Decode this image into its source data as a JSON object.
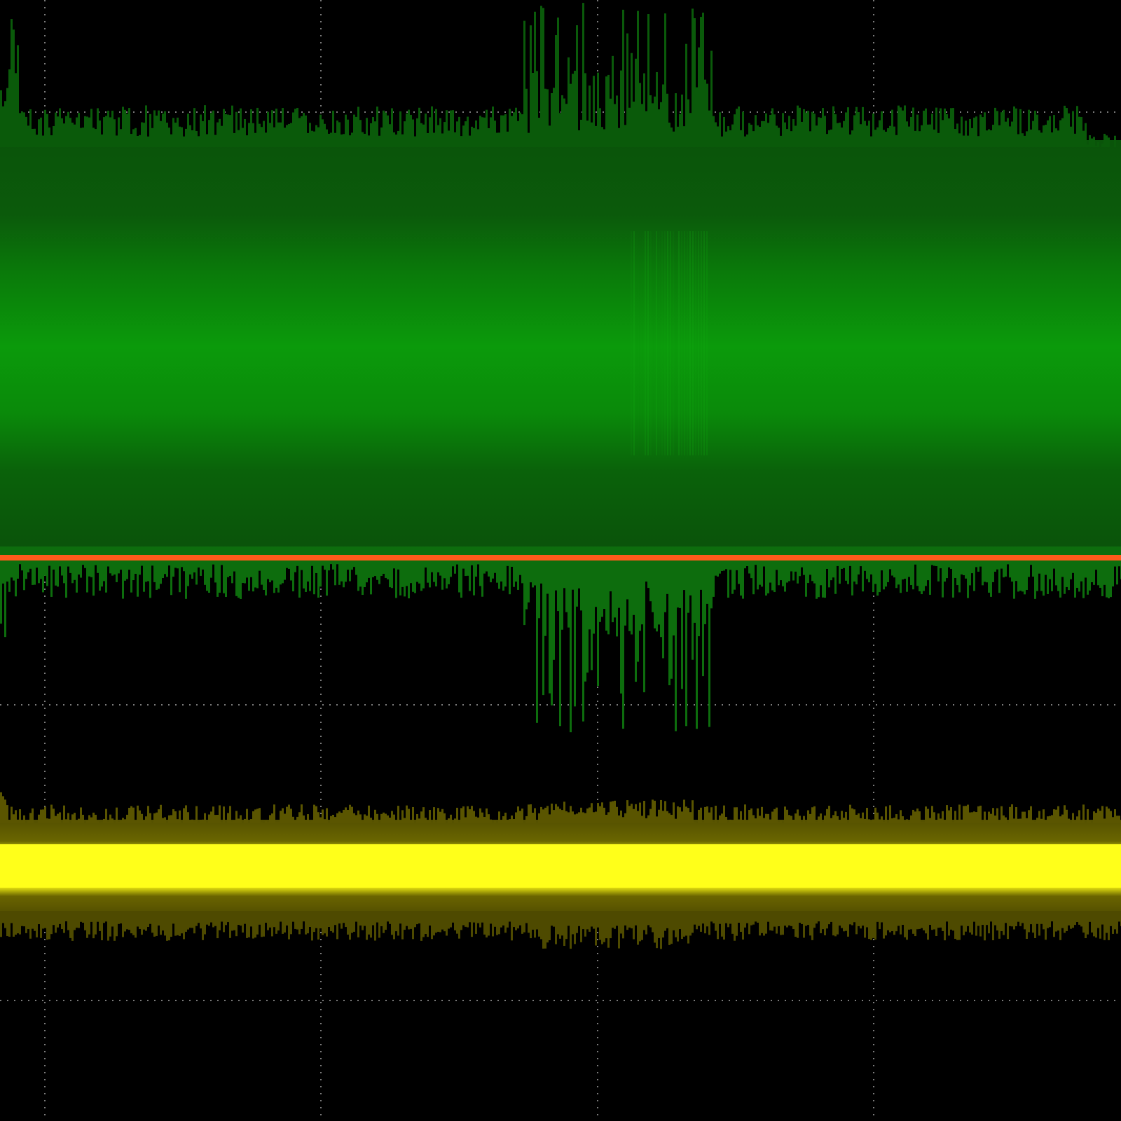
{
  "display": {
    "background_color": "#000000",
    "grid_color": "#9a9a9a",
    "grid_divisions": {
      "horizontal": 4,
      "vertical": 4
    },
    "grid_style": "dotted"
  },
  "traces": [
    {
      "id": "channel-2",
      "color_core": "#0aa30a",
      "color_outer": "#0a5a0a",
      "color_spike": "#0d6d0d",
      "description_level": "upper-band",
      "burst_region": true
    },
    {
      "id": "channel-1",
      "color_core": "#ffff1a",
      "color_outer": "#5a5400",
      "description_level": "lower-band",
      "burst_region": false
    }
  ],
  "reference_marker": {
    "color": "#ff5a1a"
  }
}
